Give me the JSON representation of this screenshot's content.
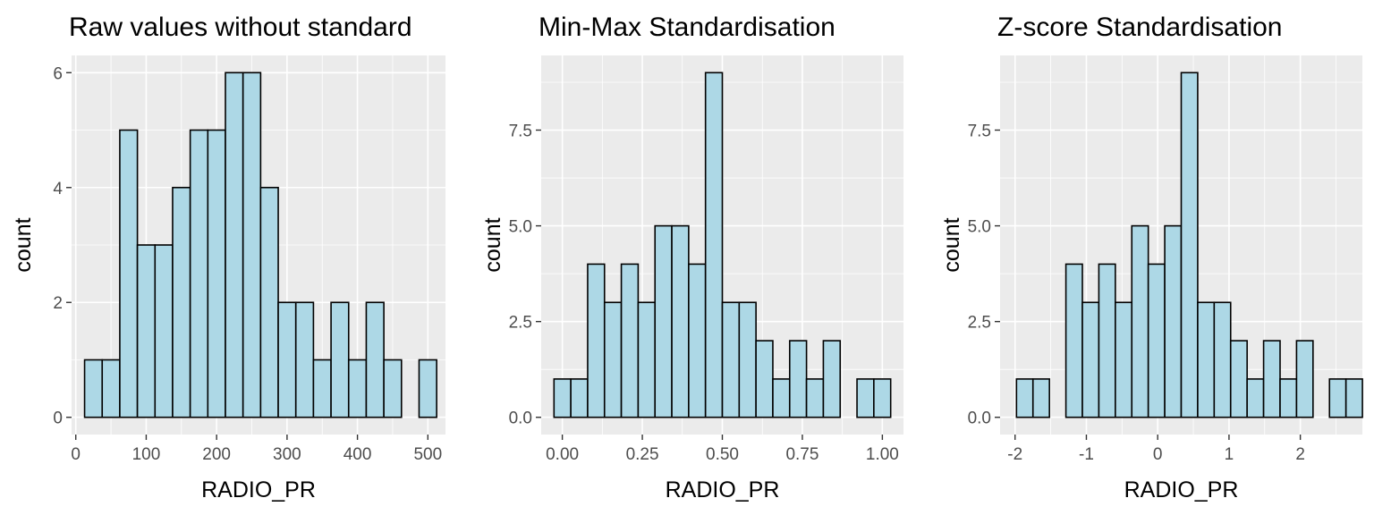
{
  "chart_data": [
    {
      "type": "bar",
      "title": "Raw values without standard",
      "xlabel": "RADIO_PR",
      "ylabel": "count",
      "xlim": [
        -6,
        525
      ],
      "ylim": [
        -0.3,
        6.3
      ],
      "xticks": [
        0,
        100,
        200,
        300,
        400,
        500
      ],
      "xtick_labels": [
        "0",
        "100",
        "200",
        "300",
        "400",
        "500"
      ],
      "yticks": [
        0,
        2,
        4,
        6
      ],
      "ytick_labels": [
        "0",
        "2",
        "4",
        "6"
      ],
      "bin_start": 12.5,
      "bin_width": 25,
      "values": [
        1,
        1,
        5,
        3,
        3,
        4,
        5,
        5,
        6,
        6,
        4,
        2,
        2,
        1,
        2,
        1,
        2,
        1,
        0,
        1
      ]
    },
    {
      "type": "bar",
      "title": "Min-Max Standardisation",
      "xlabel": "RADIO_PR",
      "ylabel": "count",
      "xlim": [
        -0.066,
        1.066
      ],
      "ylim": [
        -0.45,
        9.45
      ],
      "xticks": [
        0,
        0.25,
        0.5,
        0.75,
        1.0
      ],
      "xtick_labels": [
        "0.00",
        "0.25",
        "0.50",
        "0.75",
        "1.00"
      ],
      "yticks": [
        0,
        2.5,
        5,
        7.5
      ],
      "ytick_labels": [
        "0.0",
        "2.5",
        "5.0",
        "7.5"
      ],
      "bin_start": -0.026,
      "bin_width": 0.0526,
      "values": [
        1,
        1,
        4,
        3,
        4,
        3,
        5,
        5,
        4,
        9,
        3,
        3,
        2,
        1,
        2,
        1,
        2,
        0,
        1,
        1
      ]
    },
    {
      "type": "bar",
      "title": "Z-score Standardisation",
      "xlabel": "RADIO_PR",
      "ylabel": "count",
      "xlim": [
        -2.21,
        2.87
      ],
      "ylim": [
        -0.45,
        9.45
      ],
      "xticks": [
        -2,
        -1,
        0,
        1,
        2
      ],
      "xtick_labels": [
        "-2",
        "-1",
        "0",
        "1",
        "2"
      ],
      "yticks": [
        0,
        2.5,
        5,
        7.5
      ],
      "ytick_labels": [
        "0.0",
        "2.5",
        "5.0",
        "7.5"
      ],
      "bin_start": -1.98,
      "bin_width": 0.231,
      "values": [
        1,
        1,
        0,
        4,
        3,
        4,
        3,
        5,
        4,
        5,
        9,
        3,
        3,
        2,
        1,
        2,
        1,
        2,
        0,
        1,
        1
      ]
    }
  ]
}
